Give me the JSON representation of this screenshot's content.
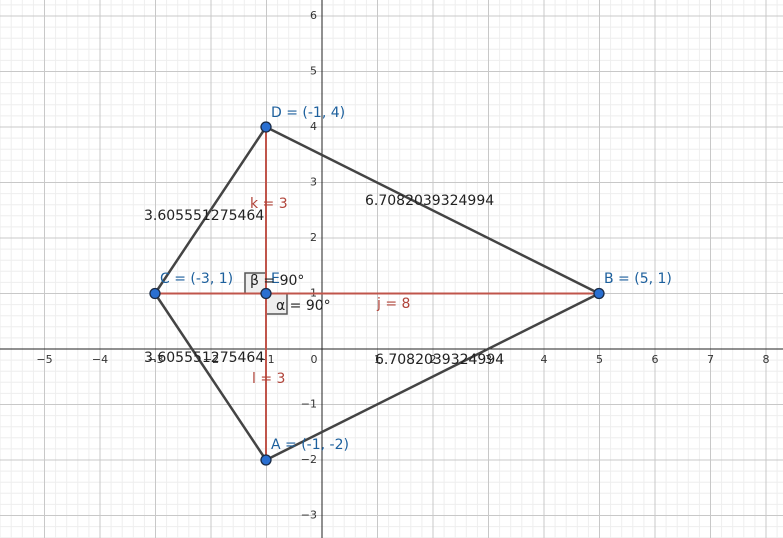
{
  "axes": {
    "x_ticks": [
      "−5",
      "−4",
      "−3",
      "−2",
      "−1",
      "0",
      "1",
      "2",
      "3",
      "4",
      "5",
      "6",
      "7",
      "8"
    ],
    "y_ticks": [
      "−3",
      "−2",
      "−1",
      "1",
      "2",
      "3",
      "4",
      "5",
      "6"
    ]
  },
  "points": [
    {
      "label": "A = (-1, -2)"
    },
    {
      "label": "B = (5, 1)"
    },
    {
      "label": "C = (-3, 1)"
    },
    {
      "label": "D = (-1, 4)"
    },
    {
      "label": "E"
    }
  ],
  "segments": [
    {
      "label": "3.605551275464"
    },
    {
      "label": "6.7082039324994"
    },
    {
      "label": "6.7082039324994"
    },
    {
      "label": "3.605551275464"
    },
    {
      "label": "k = 3"
    },
    {
      "label": "l = 3"
    },
    {
      "label": "j = 8"
    }
  ],
  "angles": [
    {
      "label": "α = 90°"
    },
    {
      "label": "β = 90°"
    }
  ]
}
